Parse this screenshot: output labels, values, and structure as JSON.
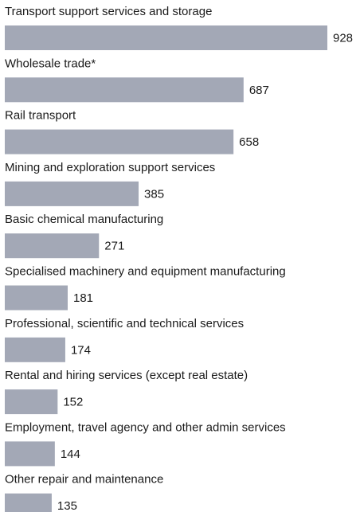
{
  "chart_data": {
    "type": "bar",
    "orientation": "horizontal",
    "color": "#a3a8b6",
    "categories": [
      "Transport support services and storage",
      "Wholesale trade*",
      "Rail transport",
      "Mining and exploration support services",
      "Basic chemical manufacturing",
      "Specialised machinery and equipment manufacturing",
      "Professional, scientific and technical services",
      "Rental and hiring services (except real estate)",
      "Employment, travel agency and other admin services",
      "Other repair and maintenance"
    ],
    "values": [
      928,
      687,
      658,
      385,
      271,
      181,
      174,
      152,
      144,
      135
    ]
  }
}
